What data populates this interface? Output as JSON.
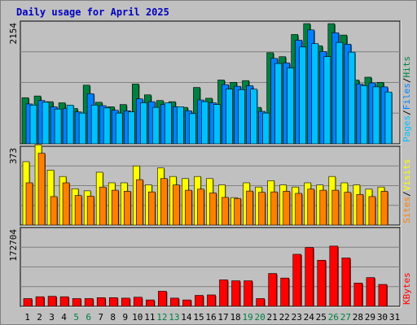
{
  "title": "Daily usage for April 2025",
  "colors": {
    "hits": "#008040",
    "files": "#0080ff",
    "pages": "#00c0ff",
    "visits": "#ffff00",
    "sites": "#ff8000",
    "kbytes": "#ff0000",
    "weekend_day": "#008040",
    "weekday": "#000000",
    "title": "#0000c0",
    "panel_bg": "#c0c0c0",
    "gridline": "#808080"
  },
  "chart_data": [
    {
      "type": "bar",
      "ymax_label": "2154",
      "ylim": [
        0,
        2154
      ],
      "right_labels": [
        "Pages",
        "Files",
        "Hits"
      ],
      "categories": [
        "1",
        "2",
        "3",
        "4",
        "5",
        "6",
        "7",
        "8",
        "9",
        "10",
        "11",
        "12",
        "13",
        "14",
        "15",
        "16",
        "17",
        "18",
        "19",
        "20",
        "21",
        "22",
        "23",
        "24",
        "25",
        "26",
        "27",
        "28",
        "29",
        "30",
        "31"
      ],
      "series": [
        {
          "name": "Hits",
          "values": [
            810,
            840,
            740,
            720,
            620,
            1030,
            730,
            650,
            690,
            1050,
            860,
            760,
            740,
            640,
            990,
            800,
            1120,
            1080,
            1110,
            640,
            1600,
            1530,
            1920,
            2110,
            1720,
            2110,
            1910,
            1120,
            1170,
            1080,
            0
          ]
        },
        {
          "name": "Files",
          "values": [
            700,
            760,
            650,
            620,
            560,
            880,
            670,
            590,
            580,
            790,
            740,
            690,
            650,
            580,
            770,
            720,
            1040,
            1010,
            1020,
            570,
            1500,
            1420,
            1820,
            2000,
            1620,
            1950,
            1750,
            1050,
            1070,
            1000,
            0
          ]
        },
        {
          "name": "Pages",
          "values": [
            680,
            730,
            610,
            680,
            540,
            680,
            630,
            540,
            560,
            720,
            640,
            720,
            650,
            530,
            740,
            690,
            960,
            950,
            960,
            540,
            1410,
            1330,
            1700,
            1760,
            1530,
            1780,
            1610,
            1020,
            1000,
            910,
            0
          ]
        }
      ]
    },
    {
      "type": "bar",
      "ymax_label": "373",
      "ylim": [
        0,
        373
      ],
      "right_labels": [
        "Sites",
        "Visits"
      ],
      "categories": [
        "1",
        "2",
        "3",
        "4",
        "5",
        "6",
        "7",
        "8",
        "9",
        "10",
        "11",
        "12",
        "13",
        "14",
        "15",
        "16",
        "17",
        "18",
        "19",
        "20",
        "21",
        "22",
        "23",
        "24",
        "25",
        "26",
        "27",
        "28",
        "29",
        "30",
        "31"
      ],
      "series": [
        {
          "name": "Visits",
          "values": [
            300,
            380,
            260,
            230,
            172,
            162,
            250,
            200,
            200,
            280,
            190,
            270,
            230,
            220,
            230,
            220,
            190,
            130,
            200,
            180,
            210,
            190,
            180,
            200,
            190,
            230,
            200,
            190,
            170,
            180,
            0
          ]
        },
        {
          "name": "Sites",
          "values": [
            200,
            340,
            135,
            200,
            140,
            137,
            180,
            165,
            160,
            215,
            157,
            220,
            190,
            165,
            170,
            152,
            131,
            126,
            161,
            155,
            157,
            160,
            150,
            170,
            165,
            165,
            155,
            145,
            135,
            160,
            0
          ]
        }
      ]
    },
    {
      "type": "bar",
      "ymax_label": "172704",
      "ylim": [
        0,
        172704
      ],
      "right_labels": [
        "KBytes"
      ],
      "categories": [
        "1",
        "2",
        "3",
        "4",
        "5",
        "6",
        "7",
        "8",
        "9",
        "10",
        "11",
        "12",
        "13",
        "14",
        "15",
        "16",
        "17",
        "18",
        "19",
        "20",
        "21",
        "22",
        "23",
        "24",
        "25",
        "26",
        "27",
        "28",
        "29",
        "30",
        "31"
      ],
      "series": [
        {
          "name": "KBytes",
          "values": [
            17000,
            21000,
            22000,
            21000,
            17000,
            17000,
            19000,
            19000,
            18000,
            20000,
            14000,
            33000,
            18000,
            14000,
            24000,
            25000,
            58000,
            56000,
            56000,
            17000,
            72000,
            62000,
            114000,
            129000,
            101000,
            132000,
            106000,
            51000,
            63000,
            48000,
            0
          ]
        }
      ]
    }
  ],
  "x_axis": {
    "labels": [
      "1",
      "2",
      "3",
      "4",
      "5",
      "6",
      "7",
      "8",
      "9",
      "10",
      "11",
      "12",
      "13",
      "14",
      "15",
      "16",
      "17",
      "18",
      "19",
      "20",
      "21",
      "22",
      "23",
      "24",
      "25",
      "26",
      "27",
      "28",
      "29",
      "30",
      "31"
    ],
    "weekend": [
      5,
      6,
      12,
      13,
      19,
      20,
      26,
      27
    ]
  }
}
